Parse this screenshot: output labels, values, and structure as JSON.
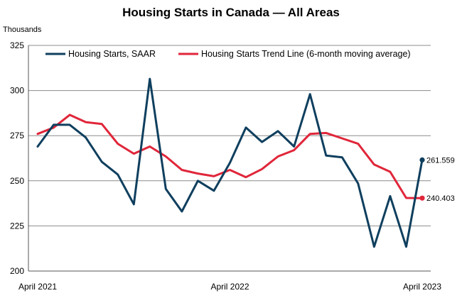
{
  "chart_data": {
    "type": "line",
    "title": "Housing Starts in Canada — All Areas",
    "ylabel": "Thousands",
    "xlabel": "",
    "ylim": [
      200,
      325
    ],
    "yticks": [
      200,
      225,
      250,
      275,
      300,
      325
    ],
    "x_ticks": [
      {
        "index": 0,
        "label": "April 2021"
      },
      {
        "index": 12,
        "label": "April 2022"
      },
      {
        "index": 24,
        "label": "April 2023"
      }
    ],
    "grid": true,
    "legend_position": "top",
    "series": [
      {
        "name": "Housing Starts, SAAR",
        "color": "#0f3f5e",
        "values": [
          269,
          281,
          281,
          274,
          260.5,
          253.5,
          237,
          306.5,
          245.5,
          233,
          250,
          244.5,
          260,
          279.5,
          271.5,
          277.5,
          269,
          298,
          264,
          263,
          248.5,
          213.5,
          241.5,
          213.5,
          261.559
        ],
        "end_label": "261.559"
      },
      {
        "name": "Housing Starts Trend Line (6-month moving average)",
        "color": "#e0263a",
        "values": [
          276,
          279.5,
          286.5,
          282.5,
          281.5,
          270.5,
          265,
          269,
          263.5,
          256,
          254,
          252.5,
          256,
          252,
          256.5,
          263.5,
          267,
          276,
          276.5,
          273.5,
          270.5,
          259,
          255,
          240.5,
          240.403
        ],
        "end_label": "240.403"
      }
    ]
  }
}
